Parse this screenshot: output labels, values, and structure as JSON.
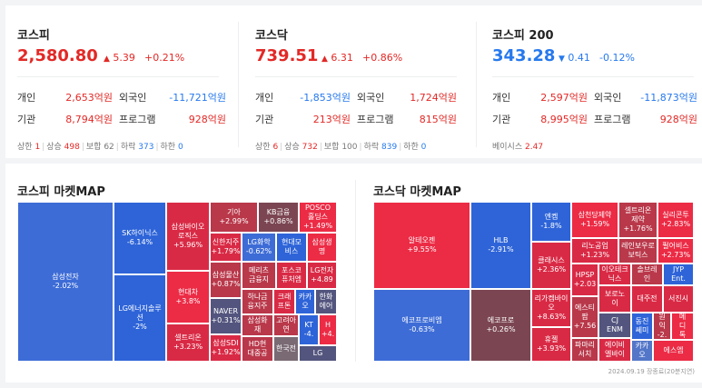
{
  "kospi": {
    "name": "코스피",
    "value": "2,580.80",
    "arrow": "▲",
    "change": "5.39",
    "pct": "+0.21%",
    "rows": [
      {
        "l1": "개인",
        "v1": "2,653억원",
        "l2": "외국인",
        "v2": "-11,721억원"
      },
      {
        "l1": "기관",
        "v1": "8,794억원",
        "l2": "프로그램",
        "v2": "928억원"
      }
    ],
    "stats": {
      "upper_label": "상한",
      "upper": "1",
      "rise_label": "상승",
      "rise": "498",
      "flat_label": "보합",
      "flat": "62",
      "fall_label": "하락",
      "fall": "373",
      "lower_label": "하한",
      "lower": "0"
    }
  },
  "kosdaq": {
    "name": "코스닥",
    "value": "739.51",
    "arrow": "▲",
    "change": "6.31",
    "pct": "+0.86%",
    "rows": [
      {
        "l1": "개인",
        "v1": "-1,853억원",
        "l2": "외국인",
        "v2": "1,724억원"
      },
      {
        "l1": "기관",
        "v1": "213억원",
        "l2": "프로그램",
        "v2": "815억원"
      }
    ],
    "stats": {
      "upper_label": "상한",
      "upper": "6",
      "rise_label": "상승",
      "rise": "732",
      "flat_label": "보합",
      "flat": "100",
      "fall_label": "하락",
      "fall": "839",
      "lower_label": "하한",
      "lower": "0"
    }
  },
  "kospi200": {
    "name": "코스피 200",
    "value": "343.28",
    "arrow": "▼",
    "change": "0.41",
    "pct": "-0.12%",
    "rows": [
      {
        "l1": "개인",
        "v1": "2,597억원",
        "l2": "외국인",
        "v2": "-11,873억원"
      },
      {
        "l1": "기관",
        "v1": "8,995억원",
        "l2": "프로그램",
        "v2": "928억원"
      }
    ],
    "basis_label": "베이시스",
    "basis": "2.47"
  },
  "kospi_map": {
    "title": "코스피 마켓MAP",
    "cells": [
      {
        "n": "삼성전자",
        "c": "-2.02%"
      },
      {
        "n": "SK하이닉스",
        "c": "-6.14%"
      },
      {
        "n": "LG에너지솔루",
        "n2": "션",
        "c": "-2%"
      },
      {
        "n": "삼성바이오",
        "n2": "로직스",
        "c": "+5.96%"
      },
      {
        "n": "현대차",
        "c": "+3.8%"
      },
      {
        "n": "셀트리온",
        "c": "+3.23%"
      },
      {
        "n": "기아",
        "c": "+2.99%"
      },
      {
        "n": "KB금융",
        "c": "+0.86%"
      },
      {
        "n": "POSCO",
        "n2": "홀딩스",
        "c": "+1.49%"
      },
      {
        "n": "신한지주",
        "c": "+1.79%"
      },
      {
        "n": "LG화학",
        "c": "-0.62%"
      },
      {
        "n": "현대모",
        "n2": "비스"
      },
      {
        "n": "삼성생",
        "n2": "명"
      },
      {
        "n": "메리츠",
        "n2": "금융지"
      },
      {
        "n": "포스코",
        "n2": "퓨처엠"
      },
      {
        "n": "LG전자",
        "c": "+4.89"
      },
      {
        "n": "삼성물산",
        "c": "+0.87%"
      },
      {
        "n": "NAVER",
        "c": "+0.31%"
      },
      {
        "n": "삼성SDI",
        "c": "+1.92%"
      },
      {
        "n": "하나금",
        "n2": "융지주"
      },
      {
        "n": "크래",
        "n2": "프톤"
      },
      {
        "n": "카카",
        "n2": "오"
      },
      {
        "n": "한화",
        "n2": "에어"
      },
      {
        "n": "삼성화",
        "n2": "재"
      },
      {
        "n": "고려아",
        "n2": "연"
      },
      {
        "n": "KT",
        "c": "-4."
      },
      {
        "n": "H",
        "c": "+4."
      },
      {
        "n": "HD현",
        "n2": "대중공"
      },
      {
        "n": "한국전"
      },
      {
        "n": "LG"
      }
    ]
  },
  "kosdaq_map": {
    "title": "코스닥 마켓MAP",
    "cells": [
      {
        "n": "알테오젠",
        "c": "+9.55%"
      },
      {
        "n": "에코프로비엠",
        "c": "-0.63%"
      },
      {
        "n": "HLB",
        "c": "-2.91%"
      },
      {
        "n": "에코프로",
        "c": "+0.26%"
      },
      {
        "n": "엔켐",
        "c": "-1.8%"
      },
      {
        "n": "클래시스",
        "c": "+2.36%"
      },
      {
        "n": "리가켐바이",
        "n2": "오",
        "c": "+8.63%"
      },
      {
        "n": "휴젤",
        "c": "+3.93%"
      },
      {
        "n": "삼천당제약",
        "c": "+1.59%"
      },
      {
        "n": "셀트리온",
        "n2": "제약",
        "c": "+1.76%"
      },
      {
        "n": "실리콘투",
        "c": "+2.83%"
      },
      {
        "n": "리노공업",
        "c": "+1.23%"
      },
      {
        "n": "레인보우로",
        "n2": "보틱스"
      },
      {
        "n": "펄어비스",
        "c": "+2.73%"
      },
      {
        "n": "HPSP",
        "c": "+2.03"
      },
      {
        "n": "이오테크",
        "n2": "닉스"
      },
      {
        "n": "솔브레",
        "n2": "인"
      },
      {
        "n": "JYP",
        "n2": "Ent."
      },
      {
        "n": "에스티",
        "n2": "팜",
        "c": "+7.56"
      },
      {
        "n": "보로노",
        "n2": "이"
      },
      {
        "n": "대주전"
      },
      {
        "n": "서진시"
      },
      {
        "n": "CJ",
        "n2": "ENM"
      },
      {
        "n": "동진",
        "n2": "쎄미"
      },
      {
        "n": "원",
        "n2": "익",
        "c": "-2."
      },
      {
        "n": "메",
        "n2": "디",
        "c": "톡"
      },
      {
        "n": "파마리",
        "n2": "서치"
      },
      {
        "n": "에이비",
        "n2": "엘바이"
      },
      {
        "n": "카카",
        "n2": "오"
      },
      {
        "n": "에스엠"
      }
    ]
  },
  "timestamp": "2024.09.19 장종료(20분지연)"
}
